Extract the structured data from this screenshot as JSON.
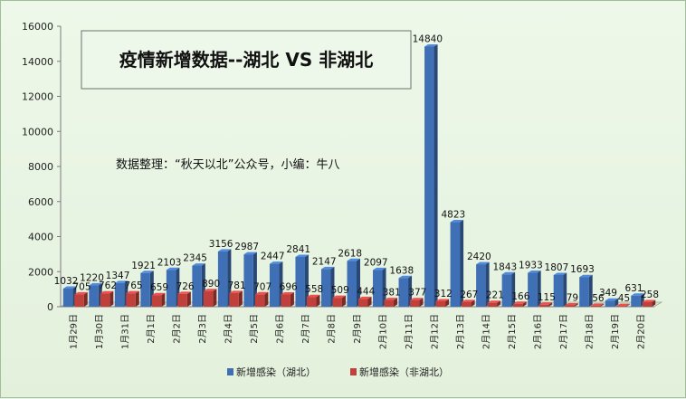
{
  "chart_data": {
    "type": "bar",
    "title": "疫情新增数据--湖北 VS 非湖北",
    "annotation": "数据整理：“秋天以北”公众号，小编：牛八",
    "categories": [
      "1月29日",
      "1月30日",
      "1月31日",
      "2月1日",
      "2月2日",
      "2月3日",
      "2月4日",
      "2月5日",
      "2月6日",
      "2月7日",
      "2月8日",
      "2月9日",
      "2月10日",
      "2月11日",
      "2月12日",
      "2月13日",
      "2月14日",
      "2月15日",
      "2月16日",
      "2月17日",
      "2月18日",
      "2月19日",
      "2月20日"
    ],
    "series": [
      {
        "name": "新增感染（湖北）",
        "color": "#3f6fb4",
        "values": [
          1032,
          1220,
          1347,
          1921,
          2103,
          2345,
          3156,
          2987,
          2447,
          2841,
          2147,
          2618,
          2097,
          1638,
          14840,
          4823,
          2420,
          1843,
          1933,
          1807,
          1693,
          349,
          631
        ]
      },
      {
        "name": "新增感染（非湖北）",
        "color": "#c0403c",
        "values": [
          705,
          762,
          765,
          659,
          726,
          890,
          781,
          707,
          696,
          558,
          509,
          444,
          381,
          377,
          312,
          267,
          221,
          166,
          115,
          79,
          56,
          45,
          258
        ]
      }
    ],
    "y_ticks": [
      "0",
      "2000",
      "4000",
      "6000",
      "8000",
      "10000",
      "12000",
      "14000",
      "16000"
    ],
    "ylim": [
      0,
      16000
    ],
    "legend_position": "bottom",
    "grid": false
  }
}
